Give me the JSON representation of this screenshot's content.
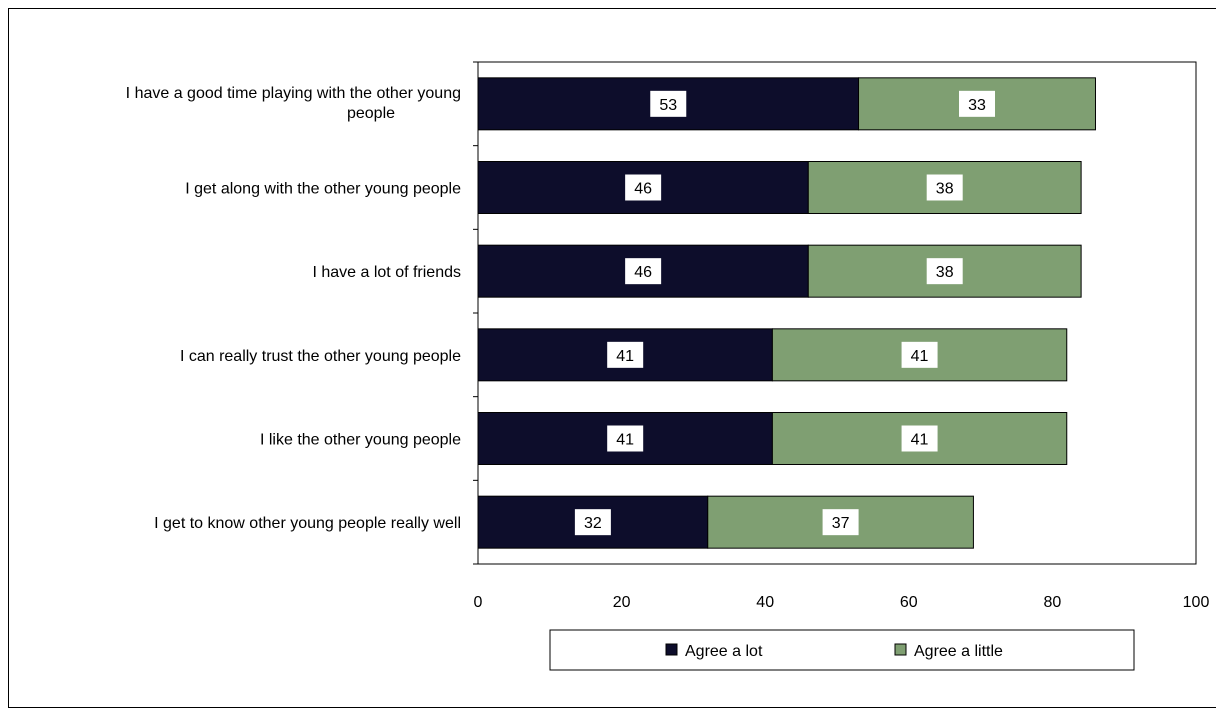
{
  "chart_data": {
    "type": "bar",
    "orientation": "horizontal",
    "stacked": true,
    "categories": [
      [
        "I have a good time playing with the other young",
        "people"
      ],
      [
        "I get along with the other young people"
      ],
      [
        "I have a lot of friends"
      ],
      [
        "I can really trust the other young people"
      ],
      [
        "I like the other young people"
      ],
      [
        "I get to know other young people really well"
      ]
    ],
    "series": [
      {
        "name": "Agree a lot",
        "color": "#0d0d2b",
        "values": [
          53,
          46,
          46,
          41,
          41,
          32
        ]
      },
      {
        "name": "Agree a little",
        "color": "#7f9f72",
        "values": [
          33,
          38,
          38,
          41,
          41,
          37
        ]
      }
    ],
    "xlim": [
      0,
      100
    ],
    "xticks": [
      "0",
      "20",
      "40",
      "60",
      "80",
      "100"
    ],
    "title": "",
    "xlabel": "",
    "ylabel": "",
    "grid": false,
    "legend": "bottom"
  }
}
